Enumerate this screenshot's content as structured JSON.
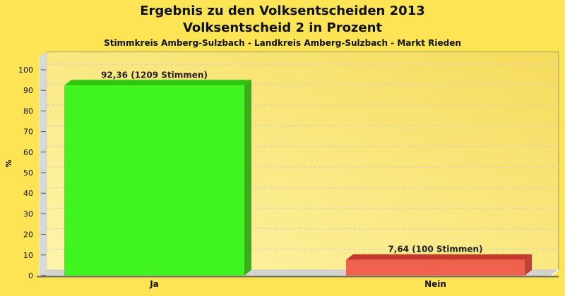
{
  "title": {
    "line1": "Ergebnis zu den Volksentscheiden 2013",
    "line2": "Volksentscheid 2 in Prozent"
  },
  "subtitle": "Stimmkreis Amberg-Sulzbach - Landkreis Amberg-Sulzbach - Markt Rieden",
  "chart_data": {
    "type": "bar",
    "style": "3d-column",
    "categories": [
      "Ja",
      "Nein"
    ],
    "values": [
      92.36,
      7.64
    ],
    "votes": [
      1209,
      100
    ],
    "value_labels": [
      "92,36 (1209 Stimmen)",
      "7,64 (100 Stimmen)"
    ],
    "ylabel": "%",
    "xlabel": "",
    "ylim": [
      0,
      100
    ],
    "yticks": [
      0,
      10,
      20,
      30,
      40,
      50,
      60,
      70,
      80,
      90,
      100
    ],
    "grid": "dashed-horizontal",
    "legend": "none",
    "bar_colors": [
      {
        "front": "#40F51F",
        "top": "#2FC60E",
        "side": "#38AE1A"
      },
      {
        "front": "#F2604E",
        "top": "#C33A2C",
        "side": "#BE4335"
      }
    ],
    "background": "#FCE454",
    "plot_gradient_dark": "#F6DB5C",
    "plot_gradient_light": "#FDF5AA",
    "grid_color": "#CFCFC4",
    "wall_color": "#D9D9D9",
    "floor_color": "#D3D3D3",
    "border_color": "#C3B45C"
  }
}
